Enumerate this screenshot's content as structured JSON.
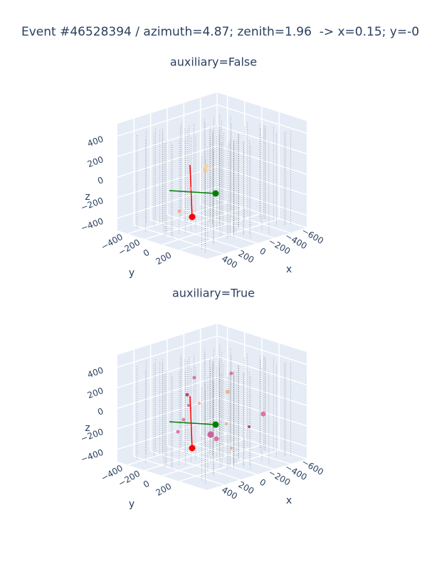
{
  "chart_data": {
    "type": "scatter3d",
    "title": "Event #46528394 / azimuth=4.87; zenith=1.96  -> x=0.15; y=-0",
    "subplots": [
      {
        "title": "auxiliary=False",
        "xaxis": {
          "title": "x",
          "range": [
            -600,
            600
          ],
          "ticks": [
            {
              "value": -600,
              "label": "−600"
            },
            {
              "value": -400,
              "label": "−400"
            },
            {
              "value": -200,
              "label": "−200"
            },
            0,
            200,
            400
          ]
        },
        "yaxis": {
          "title": "y",
          "range": [
            -520,
            520
          ],
          "ticks": [
            {
              "value": -400,
              "label": "−400"
            },
            {
              "value": -200,
              "label": "−200"
            },
            0,
            200
          ]
        },
        "zaxis": {
          "title": "z",
          "range": [
            -520,
            520
          ],
          "ticks": [
            {
              "value": -400,
              "label": "−400"
            },
            {
              "value": -200,
              "label": "−200"
            },
            0,
            200,
            400
          ]
        }
      },
      {
        "title": "auxiliary=True",
        "xaxis": {
          "title": "x",
          "range": [
            -600,
            600
          ],
          "ticks": [
            {
              "value": -600,
              "label": "−600"
            },
            {
              "value": -400,
              "label": "−400"
            },
            {
              "value": -200,
              "label": "−200"
            },
            0,
            200,
            400
          ]
        },
        "yaxis": {
          "title": "y",
          "range": [
            -520,
            520
          ],
          "ticks": [
            {
              "value": -400,
              "label": "−400"
            },
            {
              "value": -200,
              "label": "−200"
            },
            0,
            200
          ]
        },
        "zaxis": {
          "title": "z",
          "range": [
            -520,
            520
          ],
          "ticks": [
            {
              "value": -400,
              "label": "−400"
            },
            {
              "value": -200,
              "label": "−200"
            },
            0,
            200,
            400
          ]
        }
      }
    ]
  }
}
